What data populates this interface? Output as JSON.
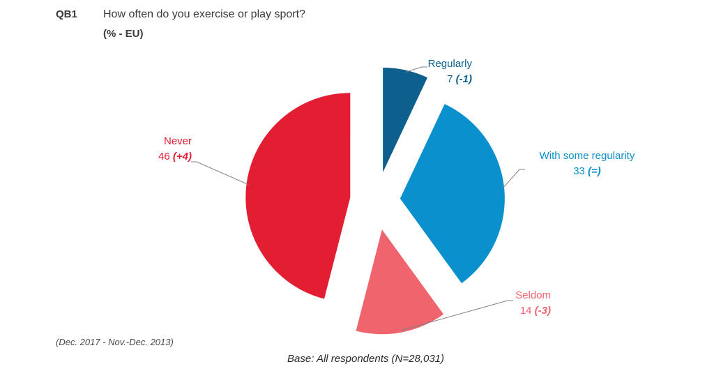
{
  "header": {
    "code": "QB1",
    "question": "How often do you exercise or play sport?",
    "unit": "(% - EU)"
  },
  "footer": {
    "period_note": "(Dec. 2017 - Nov.-Dec. 2013)",
    "base_note": "Base: All respondents (N=28,031)"
  },
  "chart_data": {
    "type": "pie",
    "title": "How often do you exercise or play sport?",
    "unit": "%",
    "slices": [
      {
        "label": "Regularly",
        "value": 7,
        "change": "(-1)",
        "color": "#0d5f8e"
      },
      {
        "label": "With some regularity",
        "value": 33,
        "change": "(=)",
        "color": "#0a90cc"
      },
      {
        "label": "Seldom",
        "value": 14,
        "change": "(-3)",
        "color": "#f0646d"
      },
      {
        "label": "Never",
        "value": 46,
        "change": "(+4)",
        "color": "#e31e33"
      }
    ]
  }
}
